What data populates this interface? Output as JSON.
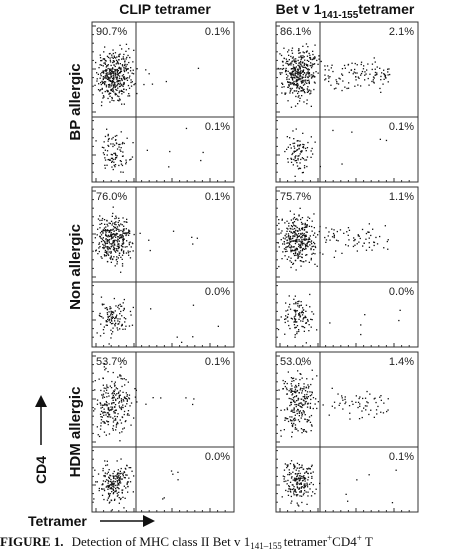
{
  "columns": [
    {
      "text": "CLIP tetramer"
    },
    {
      "text": "Bet v 1",
      "sub": "141-155",
      "after": "tetramer"
    }
  ],
  "rows": [
    {
      "label": "BP allergic",
      "plots": [
        {
          "upper_left": "90.7%",
          "upper_right": "0.1%",
          "lower_right": "0.1%"
        },
        {
          "upper_left": "86.1%",
          "upper_right": "2.1%",
          "lower_right": "0.1%"
        }
      ]
    },
    {
      "label": "Non allergic",
      "plots": [
        {
          "upper_left": "76.0%",
          "upper_right": "0.1%",
          "lower_right": "0.0%"
        },
        {
          "upper_left": "75.7%",
          "upper_right": "1.1%",
          "lower_right": "0.0%"
        }
      ]
    },
    {
      "label": "HDM allergic",
      "plots": [
        {
          "upper_left": "53.7%",
          "upper_right": "0.1%",
          "lower_right": "0.0%"
        },
        {
          "upper_left": "53.0%",
          "upper_right": "1.4%",
          "lower_right": "0.1%"
        }
      ]
    }
  ],
  "y_axis_label": "CD4",
  "x_axis_label": "Tetramer",
  "caption": {
    "label": "FIGURE 1.",
    "text": "Detection of MHC class II Bet v 1",
    "sub": "141–155",
    "after": "tetramer",
    "sup1": "+",
    "cd": "CD4",
    "sup2": "+",
    "end": "T"
  }
}
